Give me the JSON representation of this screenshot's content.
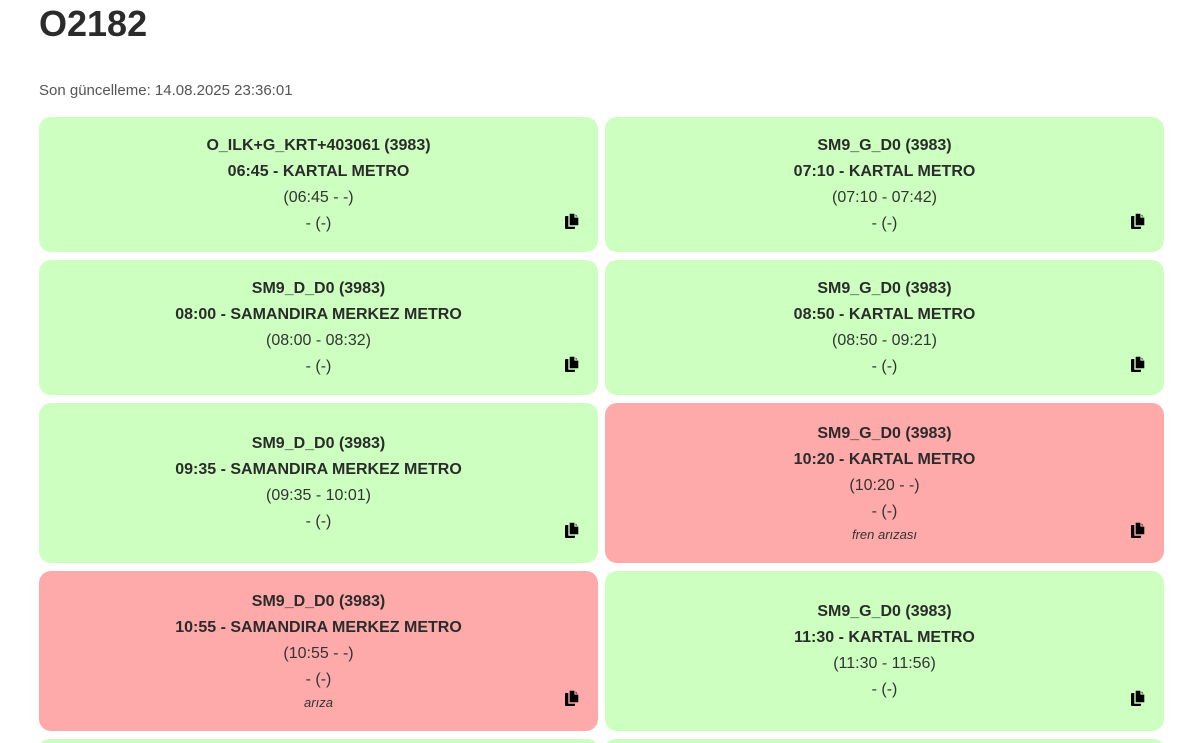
{
  "page": {
    "title": "O2182",
    "updated": "Son güncelleme: 14.08.2025 23:36:01"
  },
  "colors": {
    "ok": "#ccffc0",
    "fault": "#ffaaaa"
  },
  "icons": {
    "copy": "copy-icon"
  },
  "trips": [
    {
      "route": "O_ILK+G_KRT+403061 (3983)",
      "departure": "06:45 - KARTAL METRO",
      "times": "(06:45 - -)",
      "extra": "- (-)",
      "note": "",
      "status": "ok"
    },
    {
      "route": "SM9_G_D0 (3983)",
      "departure": "07:10 - KARTAL METRO",
      "times": "(07:10 - 07:42)",
      "extra": "- (-)",
      "note": "",
      "status": "ok"
    },
    {
      "route": "SM9_D_D0 (3983)",
      "departure": "08:00 - SAMANDIRA MERKEZ METRO",
      "times": "(08:00 - 08:32)",
      "extra": "- (-)",
      "note": "",
      "status": "ok"
    },
    {
      "route": "SM9_G_D0 (3983)",
      "departure": "08:50 - KARTAL METRO",
      "times": "(08:50 - 09:21)",
      "extra": "- (-)",
      "note": "",
      "status": "ok"
    },
    {
      "route": "SM9_D_D0 (3983)",
      "departure": "09:35 - SAMANDIRA MERKEZ METRO",
      "times": "(09:35 - 10:01)",
      "extra": "- (-)",
      "note": "",
      "status": "ok"
    },
    {
      "route": "SM9_G_D0 (3983)",
      "departure": "10:20 - KARTAL METRO",
      "times": "(10:20 - -)",
      "extra": "- (-)",
      "note": "fren arızası",
      "status": "fault"
    },
    {
      "route": "SM9_D_D0 (3983)",
      "departure": "10:55 - SAMANDIRA MERKEZ METRO",
      "times": "(10:55 - -)",
      "extra": "- (-)",
      "note": "arıza",
      "status": "fault"
    },
    {
      "route": "SM9_G_D0 (3983)",
      "departure": "11:30 - KARTAL METRO",
      "times": "(11:30 - 11:56)",
      "extra": "- (-)",
      "note": "",
      "status": "ok"
    }
  ]
}
